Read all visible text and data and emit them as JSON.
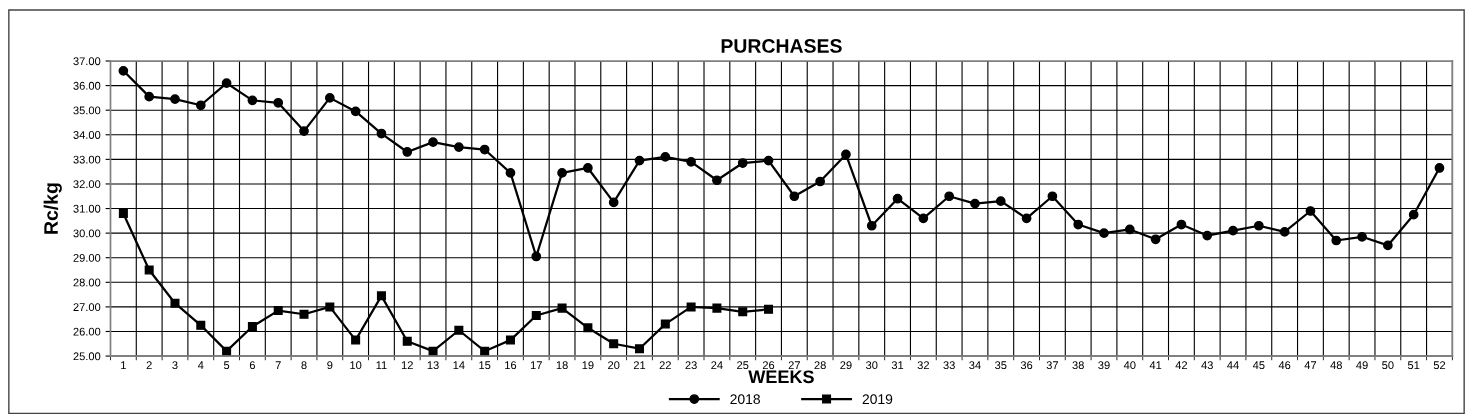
{
  "chart_data": {
    "type": "line",
    "title": "PURCHASES",
    "xlabel": "WEEKS",
    "ylabel": "Rc/kg",
    "categories": [
      "1",
      "2",
      "3",
      "4",
      "5",
      "6",
      "7",
      "8",
      "9",
      "10",
      "11",
      "12",
      "13",
      "14",
      "15",
      "16",
      "17",
      "18",
      "19",
      "20",
      "21",
      "22",
      "23",
      "24",
      "25",
      "26",
      "27",
      "28",
      "29",
      "30",
      "31",
      "32",
      "33",
      "34",
      "35",
      "36",
      "37",
      "38",
      "39",
      "40",
      "41",
      "42",
      "43",
      "44",
      "45",
      "46",
      "47",
      "48",
      "49",
      "50",
      "51",
      "52"
    ],
    "series": [
      {
        "name": "2018",
        "color": "#000000",
        "marker": "circle",
        "values": [
          36.6,
          35.55,
          35.45,
          35.2,
          36.1,
          35.4,
          35.3,
          34.15,
          35.5,
          34.95,
          34.05,
          33.3,
          33.7,
          33.5,
          33.4,
          32.45,
          29.05,
          32.45,
          32.65,
          31.25,
          32.95,
          33.1,
          32.9,
          32.15,
          32.85,
          32.95,
          31.5,
          32.1,
          33.2,
          30.3,
          31.4,
          30.6,
          31.5,
          31.2,
          31.3,
          30.6,
          31.5,
          30.35,
          30.0,
          30.15,
          29.75,
          30.35,
          29.9,
          30.1,
          30.3,
          30.05,
          30.9,
          29.7,
          29.85,
          29.5,
          30.75,
          32.65
        ]
      },
      {
        "name": "2019",
        "color": "#000000",
        "marker": "square",
        "values": [
          30.8,
          28.5,
          27.15,
          26.25,
          25.2,
          26.2,
          26.85,
          26.7,
          27.0,
          25.65,
          27.45,
          25.6,
          25.2,
          26.05,
          25.2,
          25.65,
          26.65,
          26.95,
          26.15,
          25.5,
          25.3,
          26.3,
          27.0,
          26.95,
          26.8,
          26.9,
          null,
          null,
          null,
          null,
          null,
          null,
          null,
          null,
          null,
          null,
          null,
          null,
          null,
          null,
          null,
          null,
          null,
          null,
          null,
          null,
          null,
          null,
          null,
          null,
          null,
          null
        ]
      }
    ],
    "ylim": [
      25,
      37
    ],
    "yticks": [
      {
        "value": 25,
        "label": "25.00"
      },
      {
        "value": 26,
        "label": "26.00"
      },
      {
        "value": 27,
        "label": "27.00"
      },
      {
        "value": 28,
        "label": "28.00"
      },
      {
        "value": 29,
        "label": "29.00"
      },
      {
        "value": 30,
        "label": "30.00"
      },
      {
        "value": 31,
        "label": "31.00"
      },
      {
        "value": 32,
        "label": "32.00"
      },
      {
        "value": 33,
        "label": "33.00"
      },
      {
        "value": 34,
        "label": "34.00"
      },
      {
        "value": 35,
        "label": "35.00"
      },
      {
        "value": 36,
        "label": "36.00"
      },
      {
        "value": 37,
        "label": "37.00"
      }
    ],
    "grid": true,
    "legend": "bottom",
    "line_style": "solid"
  }
}
